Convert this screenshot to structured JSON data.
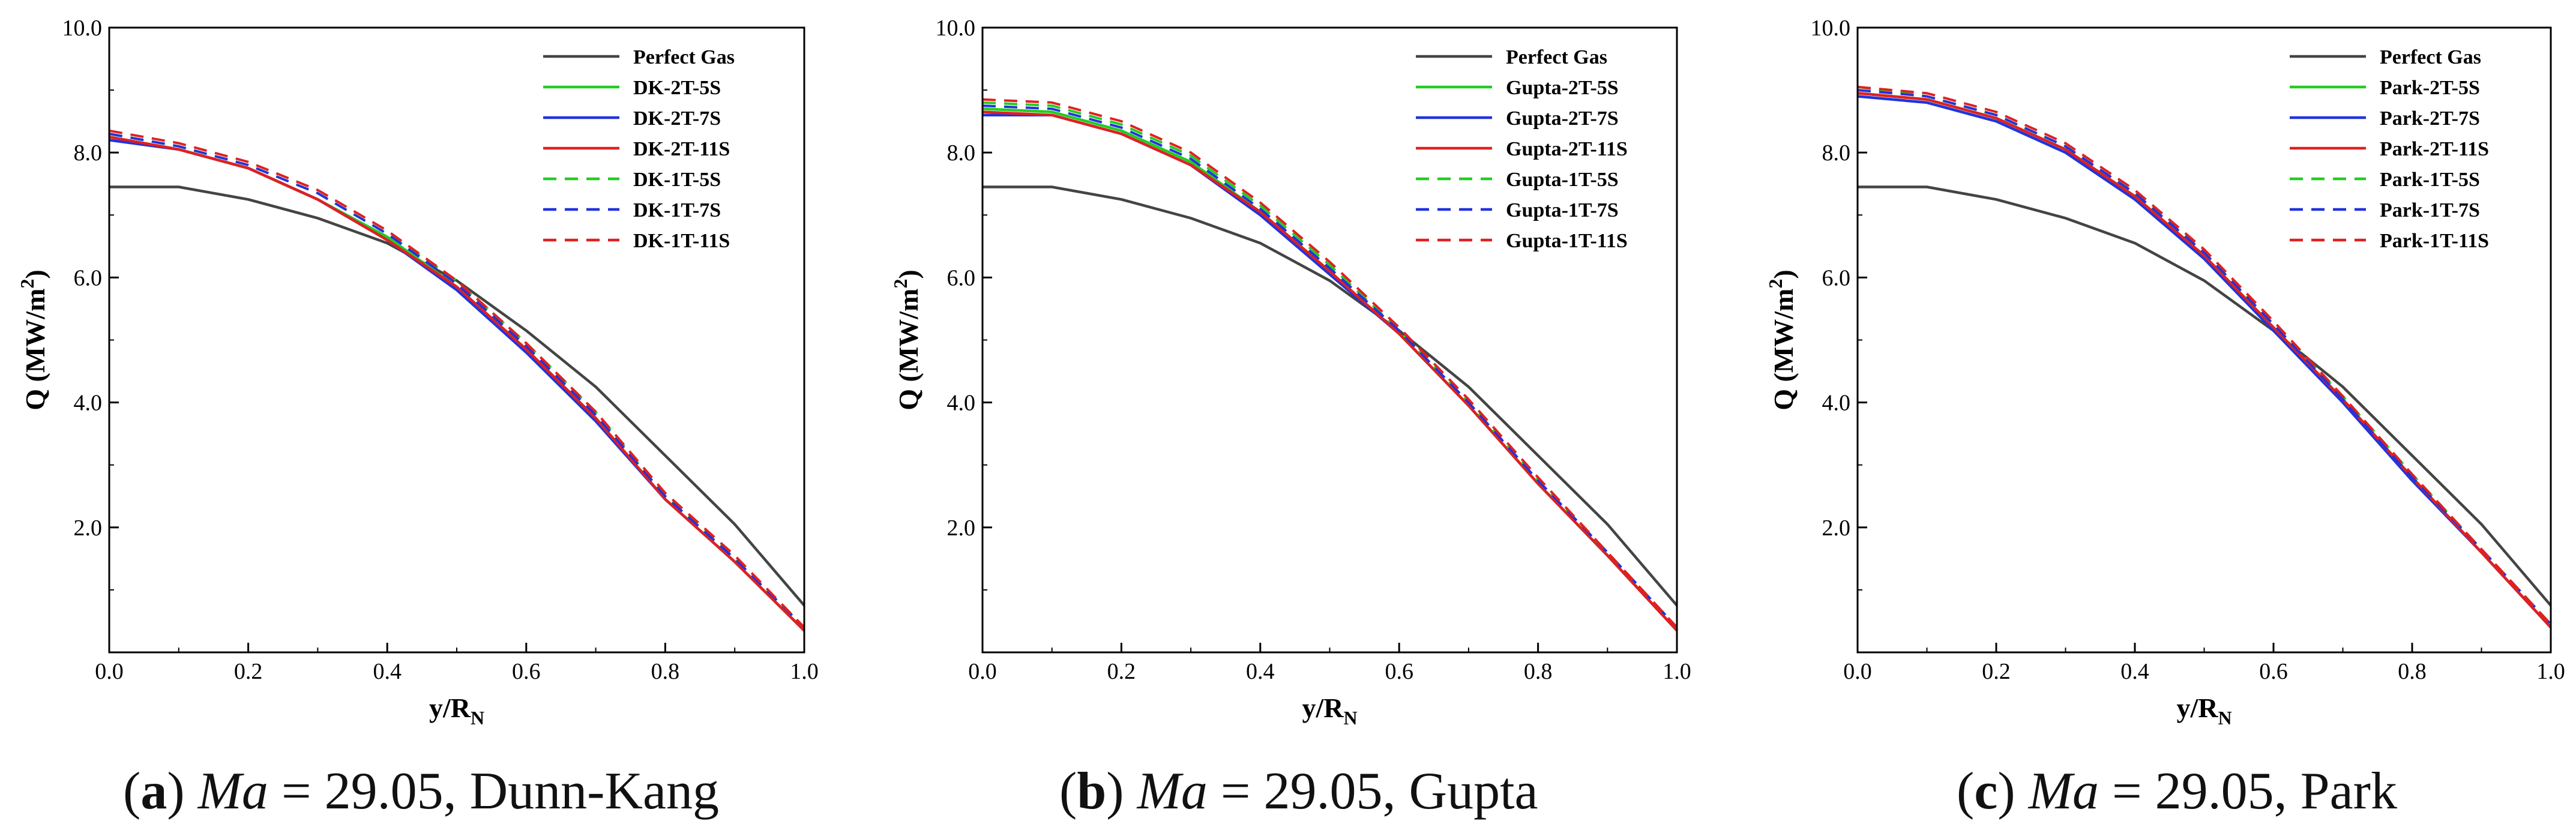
{
  "chart_data": [
    {
      "type": "line",
      "ylabel": "Q (MW/m²)",
      "ylabel_main": "Q (MW/m",
      "ylabel_sup": "2",
      "ylabel_end": ")",
      "xlabel_main": "y/R",
      "xlabel_sub": "N",
      "xlim": [
        0,
        1
      ],
      "ylim": [
        0,
        10
      ],
      "x_ticks": [
        "0.0",
        "0.2",
        "0.4",
        "0.6",
        "0.8",
        "1.0"
      ],
      "y_ticks": [
        "2.0",
        "4.0",
        "6.0",
        "8.0",
        "10.0"
      ],
      "legend_position": "top-right",
      "caption": {
        "letter": "a",
        "ma": "Ma",
        "eq": " = 29.05, ",
        "model": "Dunn-Kang"
      },
      "x": [
        0,
        0.1,
        0.2,
        0.3,
        0.4,
        0.5,
        0.6,
        0.7,
        0.8,
        0.9,
        1.0
      ],
      "series": [
        {
          "name": "Perfect Gas",
          "color": "#444444",
          "style": "solid",
          "values": [
            7.45,
            7.45,
            7.25,
            6.95,
            6.55,
            5.95,
            5.15,
            4.25,
            3.15,
            2.05,
            0.75
          ]
        },
        {
          "name": "DK-2T-5S",
          "color": "#22cc22",
          "style": "solid",
          "values": [
            8.25,
            8.05,
            7.75,
            7.25,
            6.65,
            5.85,
            4.85,
            3.75,
            2.45,
            1.45,
            0.35
          ]
        },
        {
          "name": "DK-2T-7S",
          "color": "#2233dd",
          "style": "solid",
          "values": [
            8.2,
            8.05,
            7.75,
            7.25,
            6.6,
            5.8,
            4.8,
            3.7,
            2.45,
            1.45,
            0.35
          ]
        },
        {
          "name": "DK-2T-11S",
          "color": "#e02020",
          "style": "solid",
          "values": [
            8.25,
            8.05,
            7.75,
            7.25,
            6.6,
            5.85,
            4.85,
            3.75,
            2.45,
            1.45,
            0.35
          ]
        },
        {
          "name": "DK-1T-5S",
          "color": "#22cc22",
          "style": "dashed",
          "values": [
            8.3,
            8.1,
            7.8,
            7.35,
            6.7,
            5.95,
            4.95,
            3.85,
            2.5,
            1.5,
            0.4
          ]
        },
        {
          "name": "DK-1T-7S",
          "color": "#2233dd",
          "style": "dashed",
          "values": [
            8.3,
            8.1,
            7.8,
            7.35,
            6.7,
            5.9,
            4.9,
            3.8,
            2.5,
            1.5,
            0.4
          ]
        },
        {
          "name": "DK-1T-11S",
          "color": "#e02020",
          "style": "dashed",
          "values": [
            8.35,
            8.15,
            7.85,
            7.4,
            6.75,
            5.95,
            4.95,
            3.85,
            2.55,
            1.55,
            0.4
          ]
        }
      ]
    },
    {
      "type": "line",
      "ylabel": "Q (MW/m²)",
      "ylabel_main": "Q (MW/m",
      "ylabel_sup": "2",
      "ylabel_end": ")",
      "xlabel_main": "y/R",
      "xlabel_sub": "N",
      "xlim": [
        0,
        1
      ],
      "ylim": [
        0,
        10
      ],
      "x_ticks": [
        "0.0",
        "0.2",
        "0.4",
        "0.6",
        "0.8",
        "1.0"
      ],
      "y_ticks": [
        "2.0",
        "4.0",
        "6.0",
        "8.0",
        "10.0"
      ],
      "legend_position": "top-right",
      "caption": {
        "letter": "b",
        "ma": "Ma",
        "eq": " = 29.05, ",
        "model": "Gupta"
      },
      "x": [
        0,
        0.1,
        0.2,
        0.3,
        0.4,
        0.5,
        0.6,
        0.7,
        0.8,
        0.9,
        1.0
      ],
      "series": [
        {
          "name": "Perfect Gas",
          "color": "#444444",
          "style": "solid",
          "values": [
            7.45,
            7.45,
            7.25,
            6.95,
            6.55,
            5.95,
            5.15,
            4.25,
            3.15,
            2.05,
            0.75
          ]
        },
        {
          "name": "Gupta-2T-5S",
          "color": "#22cc22",
          "style": "solid",
          "values": [
            8.7,
            8.65,
            8.35,
            7.85,
            7.05,
            6.1,
            5.1,
            3.95,
            2.7,
            1.55,
            0.35
          ]
        },
        {
          "name": "Gupta-2T-7S",
          "color": "#2233dd",
          "style": "solid",
          "values": [
            8.6,
            8.6,
            8.3,
            7.8,
            7.0,
            6.05,
            5.1,
            3.95,
            2.7,
            1.55,
            0.35
          ]
        },
        {
          "name": "Gupta-2T-11S",
          "color": "#e02020",
          "style": "solid",
          "values": [
            8.65,
            8.6,
            8.3,
            7.8,
            7.05,
            6.1,
            5.1,
            3.95,
            2.7,
            1.55,
            0.35
          ]
        },
        {
          "name": "Gupta-1T-5S",
          "color": "#22cc22",
          "style": "dashed",
          "values": [
            8.8,
            8.75,
            8.45,
            7.95,
            7.15,
            6.2,
            5.15,
            4.0,
            2.75,
            1.6,
            0.4
          ]
        },
        {
          "name": "Gupta-1T-7S",
          "color": "#2233dd",
          "style": "dashed",
          "values": [
            8.75,
            8.7,
            8.4,
            7.9,
            7.1,
            6.15,
            5.15,
            4.0,
            2.75,
            1.6,
            0.4
          ]
        },
        {
          "name": "Gupta-1T-11S",
          "color": "#e02020",
          "style": "dashed",
          "values": [
            8.85,
            8.8,
            8.5,
            8.0,
            7.2,
            6.25,
            5.2,
            4.05,
            2.8,
            1.6,
            0.4
          ]
        }
      ]
    },
    {
      "type": "line",
      "ylabel": "Q (MW/m²)",
      "ylabel_main": "Q (MW/m",
      "ylabel_sup": "2",
      "ylabel_end": ")",
      "xlabel_main": "y/R",
      "xlabel_sub": "N",
      "xlim": [
        0,
        1
      ],
      "ylim": [
        0,
        10
      ],
      "x_ticks": [
        "0.0",
        "0.2",
        "0.4",
        "0.6",
        "0.8",
        "1.0"
      ],
      "y_ticks": [
        "2.0",
        "4.0",
        "6.0",
        "8.0",
        "10.0"
      ],
      "legend_position": "top-right",
      "caption": {
        "letter": "c",
        "ma": "Ma",
        "eq": " = 29.05, ",
        "model": "Park"
      },
      "x": [
        0,
        0.1,
        0.2,
        0.3,
        0.4,
        0.5,
        0.6,
        0.7,
        0.8,
        0.9,
        1.0
      ],
      "series": [
        {
          "name": "Perfect Gas",
          "color": "#444444",
          "style": "solid",
          "values": [
            7.45,
            7.45,
            7.25,
            6.95,
            6.55,
            5.95,
            5.15,
            4.25,
            3.15,
            2.05,
            0.75
          ]
        },
        {
          "name": "Park-2T-5S",
          "color": "#22cc22",
          "style": "solid",
          "values": [
            8.95,
            8.85,
            8.55,
            8.05,
            7.3,
            6.35,
            5.2,
            4.05,
            2.8,
            1.6,
            0.4
          ]
        },
        {
          "name": "Park-2T-7S",
          "color": "#2233dd",
          "style": "solid",
          "values": [
            8.9,
            8.8,
            8.5,
            8.0,
            7.25,
            6.3,
            5.15,
            4.0,
            2.75,
            1.6,
            0.4
          ]
        },
        {
          "name": "Park-2T-11S",
          "color": "#e02020",
          "style": "solid",
          "values": [
            8.95,
            8.85,
            8.55,
            8.05,
            7.3,
            6.35,
            5.2,
            4.05,
            2.8,
            1.6,
            0.4
          ]
        },
        {
          "name": "Park-1T-5S",
          "color": "#22cc22",
          "style": "dashed",
          "values": [
            9.05,
            8.9,
            8.6,
            8.1,
            7.35,
            6.4,
            5.25,
            4.1,
            2.85,
            1.65,
            0.45
          ]
        },
        {
          "name": "Park-1T-7S",
          "color": "#2233dd",
          "style": "dashed",
          "values": [
            9.0,
            8.9,
            8.6,
            8.1,
            7.35,
            6.4,
            5.25,
            4.05,
            2.8,
            1.65,
            0.45
          ]
        },
        {
          "name": "Park-1T-11S",
          "color": "#e02020",
          "style": "dashed",
          "values": [
            9.05,
            8.95,
            8.65,
            8.15,
            7.4,
            6.45,
            5.3,
            4.1,
            2.85,
            1.65,
            0.45
          ]
        }
      ]
    }
  ]
}
